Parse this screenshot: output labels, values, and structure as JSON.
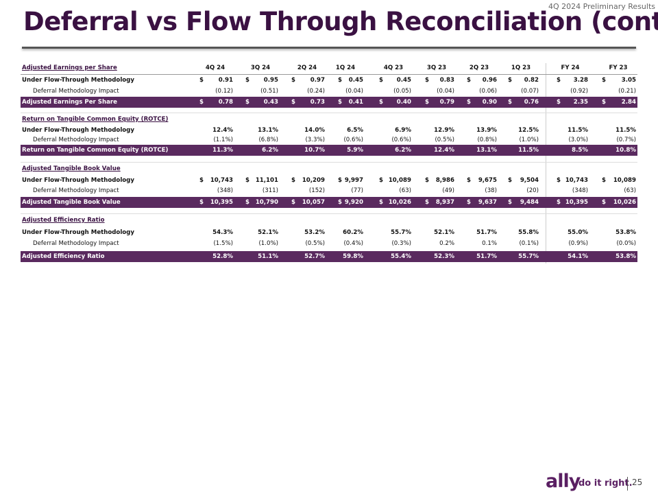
{
  "header": {
    "tag": "4Q 2024 Preliminary Results",
    "title": "Deferral vs Flow Through Reconciliation (cont.)"
  },
  "table": {
    "columns": [
      "4Q 24",
      "3Q 24",
      "2Q 24",
      "1Q 24",
      "4Q 23",
      "3Q 23",
      "2Q 23",
      "1Q 23",
      "FY 24",
      "FY 23"
    ],
    "sections": [
      {
        "title": "Adjusted Earnings per Share",
        "rows": [
          {
            "label": "Under Flow-Through Methodology",
            "prefix": "$",
            "cells": [
              "0.91",
              "0.95",
              "0.97",
              "0.45",
              "0.45",
              "0.83",
              "0.96",
              "0.82",
              "3.28",
              "3.05"
            ]
          },
          {
            "label": "Deferral Methodology Impact",
            "cells": [
              "(0.12)",
              "(0.51)",
              "(0.24)",
              "(0.04)",
              "(0.05)",
              "(0.04)",
              "(0.06)",
              "(0.07)",
              "(0.92)",
              "(0.21)"
            ]
          },
          {
            "label": "Adjusted Earnings Per Share",
            "prefix": "$",
            "cells": [
              "0.78",
              "0.43",
              "0.73",
              "0.41",
              "0.40",
              "0.79",
              "0.90",
              "0.76",
              "2.35",
              "2.84"
            ]
          }
        ]
      },
      {
        "title": "Return on Tangible Common Equity (ROTCE)",
        "rows": [
          {
            "label": "Under Flow-Through Methodology",
            "cells": [
              "12.4%",
              "13.1%",
              "14.0%",
              "6.5%",
              "6.9%",
              "12.9%",
              "13.9%",
              "12.5%",
              "11.5%",
              "11.5%"
            ]
          },
          {
            "label": "Deferral Methodology Impact",
            "cells": [
              "(1.1%)",
              "(6.8%)",
              "(3.3%)",
              "(0.6%)",
              "(0.6%)",
              "(0.5%)",
              "(0.8%)",
              "(1.0%)",
              "(3.0%)",
              "(0.7%)"
            ]
          },
          {
            "label": "Return on Tangible Common Equity (ROTCE)",
            "cells": [
              "11.3%",
              "6.2%",
              "10.7%",
              "5.9%",
              "6.2%",
              "12.4%",
              "13.1%",
              "11.5%",
              "8.5%",
              "10.8%"
            ]
          }
        ]
      },
      {
        "title": "Adjusted Tangible Book Value",
        "rows": [
          {
            "label": "Under Flow-Through Methodology",
            "prefix": "$",
            "cells": [
              "10,743",
              "11,101",
              "10,209",
              "9,997",
              "10,089",
              "8,986",
              "9,675",
              "9,504",
              "10,743",
              "10,089"
            ]
          },
          {
            "label": "Deferral Methodology Impact",
            "cells": [
              "(348)",
              "(311)",
              "(152)",
              "(77)",
              "(63)",
              "(49)",
              "(38)",
              "(20)",
              "(348)",
              "(63)"
            ]
          },
          {
            "label": "Adjusted Tangible Book Value",
            "prefix": "$",
            "cells": [
              "10,395",
              "10,790",
              "10,057",
              "9,920",
              "10,026",
              "8,937",
              "9,637",
              "9,484",
              "10,395",
              "10,026"
            ]
          }
        ]
      },
      {
        "title": "Adjusted Efficiency Ratio",
        "rows": [
          {
            "label": "Under Flow-Through Methodology",
            "cells": [
              "54.3%",
              "52.1%",
              "53.2%",
              "60.2%",
              "55.7%",
              "52.1%",
              "51.7%",
              "55.8%",
              "55.0%",
              "53.8%"
            ]
          },
          {
            "label": "Deferral Methodology Impact",
            "cells": [
              "(1.5%)",
              "(1.0%)",
              "(0.5%)",
              "(0.4%)",
              "(0.3%)",
              "0.2%",
              "0.1%",
              "(0.1%)",
              "(0.9%)",
              "(0.0%)"
            ]
          },
          {
            "label": "Adjusted Efficiency Ratio",
            "cells": [
              "52.8%",
              "51.1%",
              "52.7%",
              "59.8%",
              "55.4%",
              "52.3%",
              "51.7%",
              "55.7%",
              "54.1%",
              "53.8%"
            ]
          }
        ]
      }
    ]
  },
  "footer": {
    "brand": "ally",
    "tagline": "do it right.",
    "page": "25"
  }
}
